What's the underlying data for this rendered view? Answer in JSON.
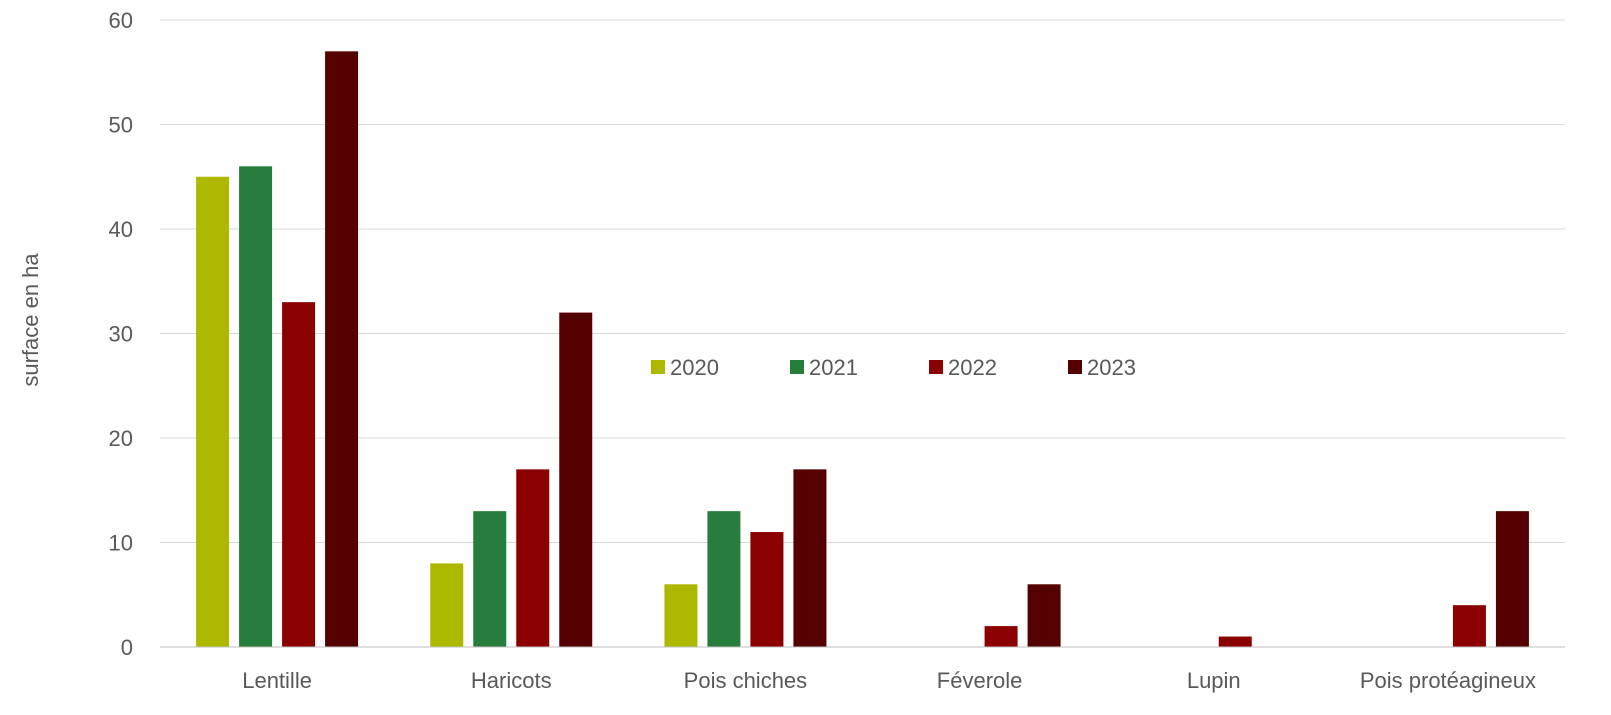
{
  "chart_data": {
    "type": "bar",
    "categories": [
      "Lentille",
      "Haricots",
      "Pois chiches",
      "Féverole",
      "Lupin",
      "Pois protéagineux"
    ],
    "series": [
      {
        "name": "2020",
        "color": "#acb900",
        "values": [
          45,
          8,
          6,
          0,
          0,
          0
        ]
      },
      {
        "name": "2021",
        "color": "#267d3c",
        "values": [
          46,
          13,
          13,
          0,
          0,
          0
        ]
      },
      {
        "name": "2022",
        "color": "#8b0000",
        "values": [
          33,
          17,
          11,
          2,
          1,
          4
        ]
      },
      {
        "name": "2023",
        "color": "#550000",
        "values": [
          57,
          32,
          17,
          6,
          0,
          13
        ]
      }
    ],
    "title": "",
    "xlabel": "",
    "ylabel": "surface en ha",
    "ylim": [
      0,
      60
    ],
    "yticks": [
      0,
      10,
      20,
      30,
      40,
      50,
      60
    ],
    "grid": true,
    "legend_position": "center"
  }
}
